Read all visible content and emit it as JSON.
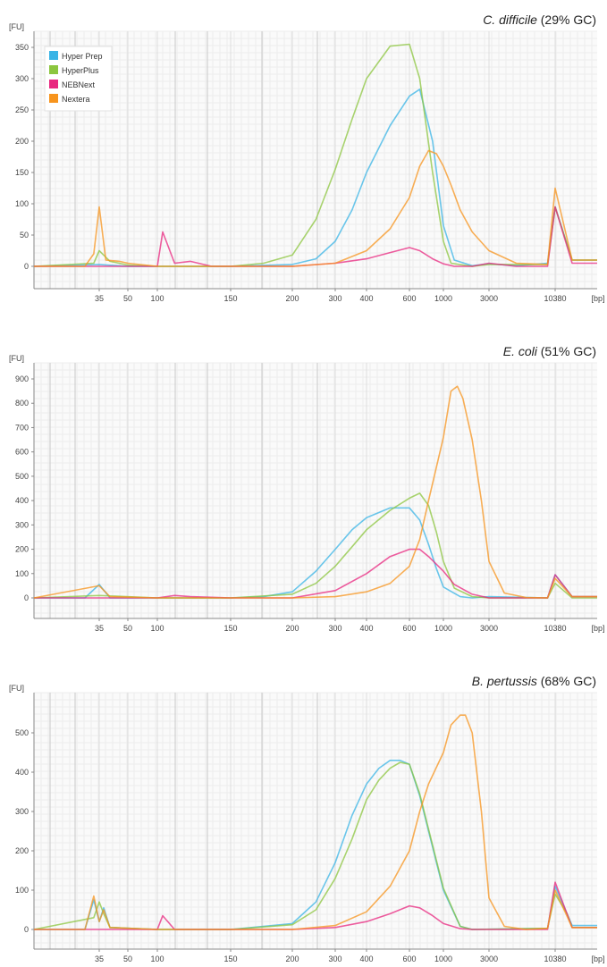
{
  "figure": {
    "series_names": [
      "Hyper Prep",
      "HyperPlus",
      "NEBNext",
      "Nextera"
    ],
    "series_colors": [
      "#3ab4e6",
      "#8cc63f",
      "#e8277f",
      "#f7941d"
    ],
    "x_unit": "[bp]",
    "y_unit": "[FU]"
  },
  "chart_data": [
    {
      "type": "line",
      "title_italic": "C. difficile",
      "title_rest": " (29% GC)",
      "xlabel": "[bp]",
      "ylabel": "[FU]",
      "x_ticks": [
        "35",
        "50",
        "100",
        "150",
        "200",
        "300",
        "400",
        "600",
        "1000",
        "3000",
        "10380"
      ],
      "y_ticks": [
        0,
        50,
        100,
        150,
        200,
        250,
        300,
        350
      ],
      "ylim": [
        -30,
        370
      ],
      "grid": true,
      "legend": "top-left",
      "series": [
        {
          "name": "Hyper Prep",
          "x": [
            "35",
            "50",
            "100",
            "150",
            "200",
            "250",
            "300",
            "350",
            "400",
            "500",
            "600",
            "700",
            "850",
            "1000",
            "1300",
            "2000",
            "3000",
            "5000",
            "9000",
            "10380",
            "12000"
          ],
          "y": [
            3,
            0,
            0,
            0,
            3,
            12,
            40,
            90,
            150,
            225,
            272,
            283,
            200,
            65,
            10,
            1,
            4,
            1,
            5,
            95,
            10
          ]
        },
        {
          "name": "HyperPlus",
          "x": [
            "33",
            "35",
            "40",
            "50",
            "100",
            "150",
            "175",
            "200",
            "250",
            "300",
            "350",
            "400",
            "500",
            "600",
            "700",
            "850",
            "1000",
            "1200",
            "2000",
            "3000",
            "9000",
            "10380",
            "12000"
          ],
          "y": [
            5,
            25,
            8,
            2,
            0,
            0,
            5,
            18,
            75,
            155,
            235,
            300,
            352,
            355,
            300,
            150,
            40,
            5,
            0,
            3,
            3,
            95,
            10
          ]
        },
        {
          "name": "NEBNext",
          "x": [
            "33",
            "60",
            "100",
            "103",
            "110",
            "120",
            "135",
            "150",
            "200",
            "300",
            "400",
            "500",
            "600",
            "700",
            "850",
            "1000",
            "1300",
            "2000",
            "3000",
            "5000",
            "9000",
            "10380",
            "12000"
          ],
          "y": [
            0,
            0,
            0,
            55,
            5,
            8,
            0,
            0,
            0,
            5,
            12,
            22,
            30,
            25,
            12,
            4,
            0,
            0,
            5,
            0,
            0,
            95,
            5
          ]
        },
        {
          "name": "Nextera",
          "x": [
            "30",
            "33",
            "35",
            "38",
            "45",
            "50",
            "100",
            "150",
            "200",
            "300",
            "400",
            "500",
            "600",
            "700",
            "800",
            "900",
            "1000",
            "1200",
            "1500",
            "2000",
            "3000",
            "5000",
            "9000",
            "10380",
            "12000"
          ],
          "y": [
            0,
            20,
            95,
            10,
            8,
            5,
            0,
            0,
            0,
            5,
            25,
            60,
            110,
            160,
            185,
            180,
            160,
            130,
            90,
            55,
            25,
            5,
            3,
            125,
            10
          ]
        }
      ]
    },
    {
      "type": "line",
      "title_italic": "E. coli",
      "title_rest": " (51% GC)",
      "xlabel": "[bp]",
      "ylabel": "[FU]",
      "x_ticks": [
        "35",
        "50",
        "100",
        "150",
        "200",
        "300",
        "400",
        "600",
        "1000",
        "3000",
        "10380"
      ],
      "y_ticks": [
        0,
        100,
        200,
        300,
        400,
        500,
        600,
        700,
        800,
        900
      ],
      "ylim": [
        -80,
        940
      ],
      "grid": true,
      "legend": "none",
      "series": [
        {
          "name": "Hyper Prep",
          "x": [
            "30",
            "35",
            "40",
            "100",
            "150",
            "175",
            "200",
            "250",
            "300",
            "350",
            "400",
            "500",
            "600",
            "700",
            "800",
            "900",
            "1000",
            "1500",
            "2000",
            "3000",
            "9000",
            "10380",
            "12000"
          ],
          "y": [
            0,
            55,
            0,
            0,
            0,
            5,
            25,
            110,
            200,
            280,
            330,
            370,
            370,
            320,
            220,
            120,
            45,
            5,
            0,
            5,
            0,
            95,
            5
          ]
        },
        {
          "name": "HyperPlus",
          "x": [
            "35",
            "100",
            "150",
            "200",
            "250",
            "300",
            "350",
            "400",
            "500",
            "600",
            "700",
            "800",
            "900",
            "1000",
            "1300",
            "2000",
            "3000",
            "9000",
            "10380",
            "12000"
          ],
          "y": [
            10,
            0,
            0,
            15,
            60,
            130,
            210,
            280,
            360,
            410,
            430,
            380,
            270,
            150,
            40,
            5,
            0,
            0,
            60,
            0
          ]
        },
        {
          "name": "NEBNext",
          "x": [
            "35",
            "100",
            "110",
            "120",
            "150",
            "200",
            "300",
            "400",
            "500",
            "600",
            "700",
            "800",
            "1000",
            "1300",
            "2000",
            "3000",
            "9000",
            "10380",
            "12000"
          ],
          "y": [
            0,
            0,
            10,
            5,
            0,
            0,
            30,
            100,
            170,
            200,
            200,
            170,
            110,
            55,
            15,
            0,
            0,
            95,
            5
          ]
        },
        {
          "name": "Nextera",
          "x": [
            "35",
            "40",
            "100",
            "150",
            "200",
            "300",
            "400",
            "500",
            "600",
            "700",
            "800",
            "1000",
            "1200",
            "1400",
            "1600",
            "2000",
            "2500",
            "3000",
            "4000",
            "6000",
            "9000",
            "10380",
            "12000"
          ],
          "y": [
            50,
            5,
            0,
            0,
            0,
            5,
            25,
            60,
            130,
            240,
            400,
            660,
            850,
            870,
            820,
            650,
            400,
            150,
            20,
            2,
            0,
            80,
            5
          ]
        }
      ]
    },
    {
      "type": "line",
      "title_italic": "B. pertussis",
      "title_rest": " (68% GC)",
      "xlabel": "[bp]",
      "ylabel": "[FU]",
      "x_ticks": [
        "35",
        "50",
        "100",
        "150",
        "200",
        "300",
        "400",
        "600",
        "1000",
        "3000",
        "10380"
      ],
      "y_ticks": [
        0,
        100,
        200,
        300,
        400,
        500
      ],
      "ylim": [
        -40,
        560
      ],
      "grid": true,
      "legend": "none",
      "series": [
        {
          "name": "Hyper Prep",
          "x": [
            "30",
            "33",
            "35",
            "37",
            "40",
            "100",
            "150",
            "200",
            "250",
            "300",
            "350",
            "400",
            "450",
            "500",
            "550",
            "600",
            "700",
            "800",
            "1000",
            "1500",
            "2000",
            "9000",
            "10380",
            "12000"
          ],
          "y": [
            0,
            75,
            20,
            55,
            5,
            0,
            0,
            15,
            70,
            170,
            290,
            370,
            410,
            430,
            430,
            420,
            340,
            250,
            100,
            8,
            0,
            3,
            110,
            10
          ]
        },
        {
          "name": "HyperPlus",
          "x": [
            "33",
            "35",
            "37",
            "40",
            "100",
            "150",
            "200",
            "250",
            "300",
            "350",
            "400",
            "450",
            "500",
            "550",
            "600",
            "700",
            "800",
            "1000",
            "1500",
            "2000",
            "9000",
            "10380",
            "11500",
            "12000"
          ],
          "y": [
            30,
            70,
            40,
            5,
            0,
            0,
            12,
            50,
            130,
            230,
            330,
            380,
            410,
            425,
            420,
            345,
            255,
            105,
            8,
            0,
            3,
            90,
            40,
            5
          ]
        },
        {
          "name": "NEBNext",
          "x": [
            "30",
            "35",
            "40",
            "100",
            "103",
            "110",
            "150",
            "200",
            "300",
            "400",
            "500",
            "600",
            "700",
            "850",
            "1000",
            "1500",
            "2000",
            "9000",
            "10380",
            "12000"
          ],
          "y": [
            0,
            0,
            0,
            0,
            35,
            0,
            0,
            0,
            5,
            20,
            40,
            60,
            55,
            35,
            15,
            2,
            0,
            0,
            120,
            5
          ]
        },
        {
          "name": "Nextera",
          "x": [
            "30",
            "33",
            "35",
            "37",
            "40",
            "100",
            "150",
            "200",
            "300",
            "400",
            "500",
            "600",
            "700",
            "800",
            "1000",
            "1200",
            "1500",
            "1700",
            "2000",
            "2500",
            "3000",
            "4000",
            "6000",
            "9000",
            "10380",
            "12000"
          ],
          "y": [
            0,
            85,
            20,
            50,
            5,
            0,
            0,
            0,
            10,
            45,
            110,
            200,
            300,
            370,
            450,
            520,
            545,
            545,
            500,
            300,
            80,
            8,
            0,
            3,
            100,
            5
          ]
        }
      ]
    }
  ]
}
